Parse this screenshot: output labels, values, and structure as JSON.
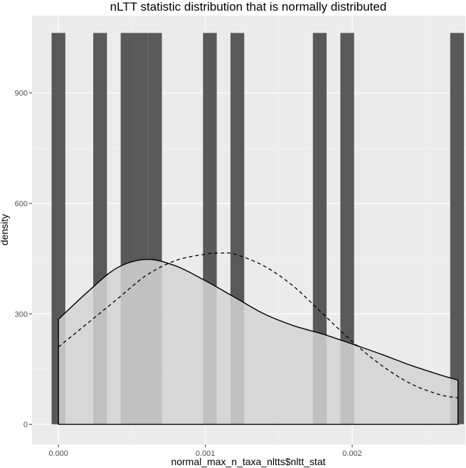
{
  "chart_data": {
    "type": "bar",
    "title": "nLTT statistic distribution that is normally distributed",
    "xlabel": "normal_max_n_taxa_nltts$nltt_stat",
    "ylabel": "density",
    "xlim": [
      -0.00018,
      0.00277
    ],
    "ylim": [
      -55,
      1110
    ],
    "x_ticks": [
      0.0,
      0.001,
      0.002
    ],
    "x_tick_labels": [
      "0.000",
      "0.001",
      "0.002"
    ],
    "y_ticks": [
      0,
      300,
      600,
      900
    ],
    "y_tick_labels": [
      "0",
      "300",
      "600",
      "900"
    ],
    "x_minor_ticks": [
      0.0005,
      0.0015,
      0.0025
    ],
    "y_minor_ticks": [
      150,
      450,
      750
    ],
    "grid": true,
    "histogram": {
      "bin_width": 9.35e-05,
      "bar_height": 1063,
      "bin_centers": [
        0.0,
        0.0002835,
        0.0004705,
        0.000564,
        0.0006575,
        0.001031,
        0.0012181,
        0.0017791,
        0.0019661,
        0.0027141
      ],
      "color": "#595959"
    },
    "density_kde": {
      "x": [
        0.0,
        0.0002,
        0.0004,
        0.0006,
        0.0008,
        0.001,
        0.0012,
        0.0014,
        0.0016,
        0.0018,
        0.002,
        0.0022,
        0.0024,
        0.0026,
        0.00272
      ],
      "y": [
        285,
        360,
        425,
        448,
        430,
        390,
        345,
        300,
        268,
        245,
        218,
        190,
        160,
        134,
        120
      ],
      "fill": "#d3d3d3",
      "line": "#000000"
    },
    "normal_fit": {
      "x": [
        0.0,
        0.0002,
        0.0004,
        0.0006,
        0.0008,
        0.001,
        0.0011,
        0.0012,
        0.0014,
        0.0016,
        0.0018,
        0.002,
        0.0022,
        0.0024,
        0.0026,
        0.00272
      ],
      "y": [
        210,
        275,
        340,
        405,
        445,
        462,
        465,
        462,
        430,
        375,
        300,
        225,
        160,
        110,
        80,
        72
      ],
      "line_style": "dashed",
      "color": "#000000"
    },
    "colors": {
      "panel_background": "#ebebeb",
      "grid_major": "#ffffff",
      "grid_minor": "#f5f5f5",
      "tick_label": "#4d4d4d"
    }
  }
}
